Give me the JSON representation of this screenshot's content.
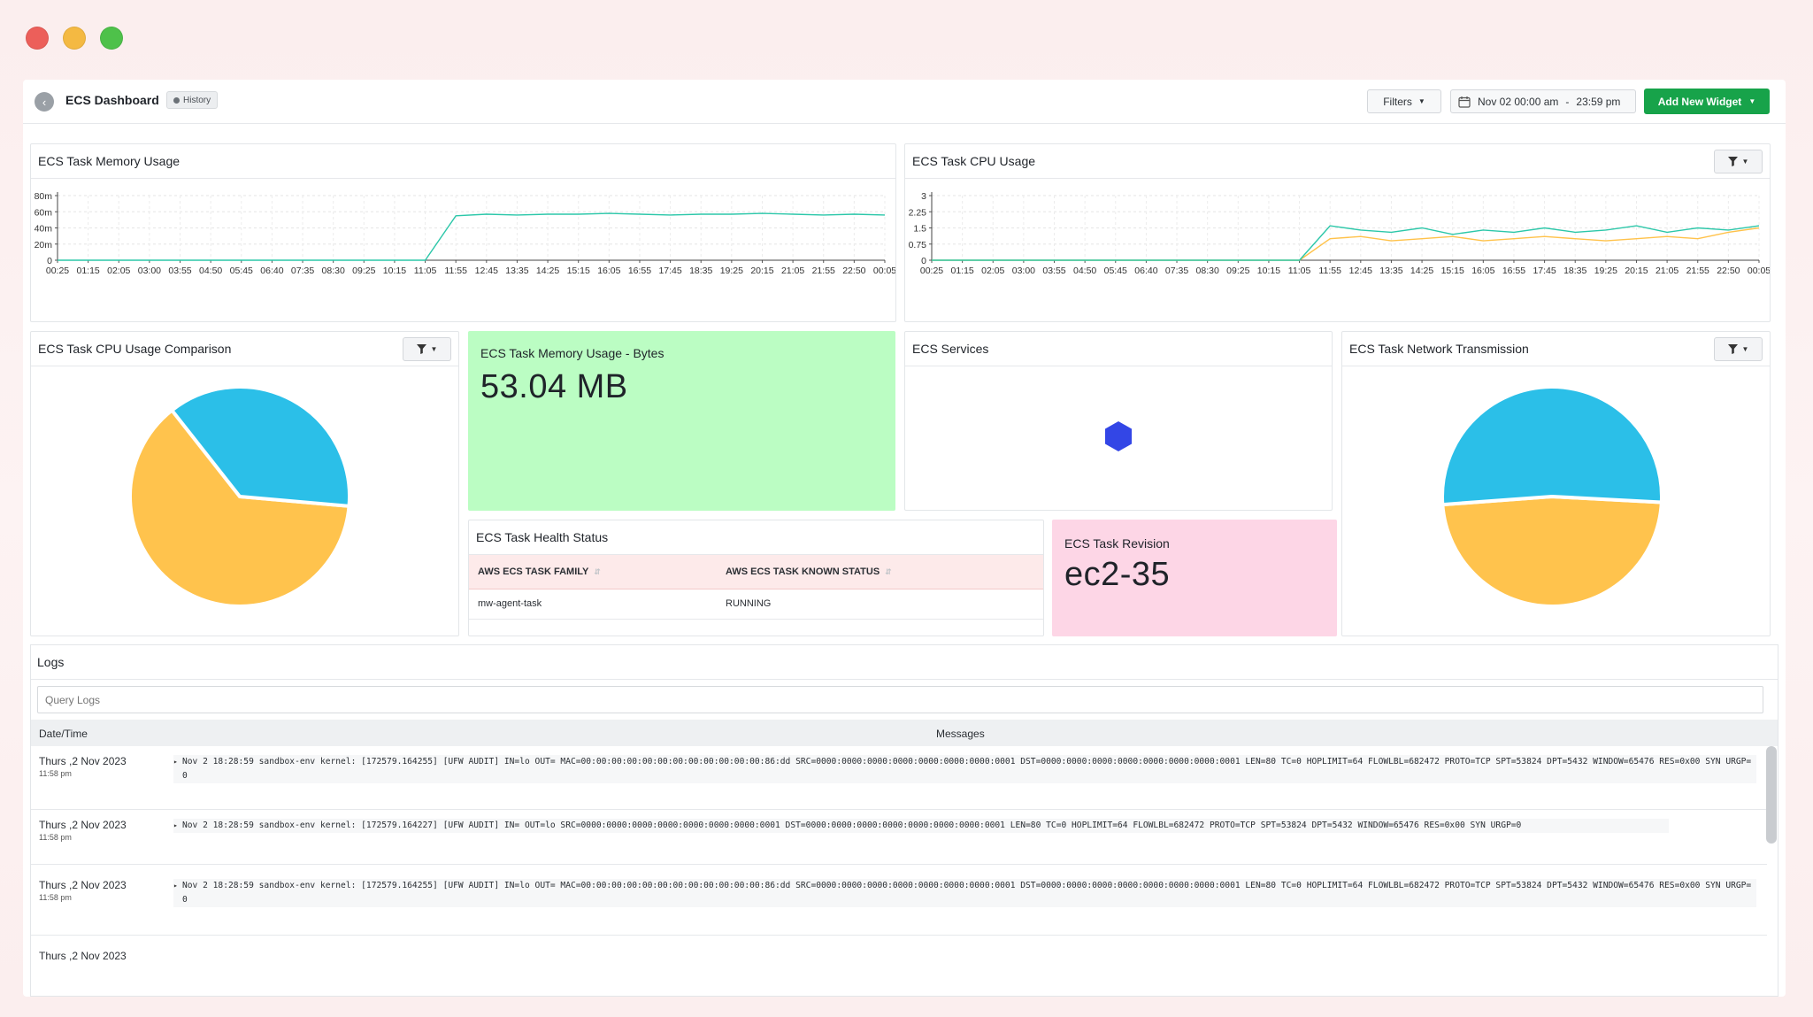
{
  "window_controls": {
    "close_color": "#ec5f5a",
    "minimize_color": "#f4b942",
    "zoom_color": "#4ec14a"
  },
  "header": {
    "back_icon": "chevron-left-icon",
    "title": "ECS Dashboard",
    "history_badge": "History",
    "filters_label": "Filters",
    "date_range": {
      "start": "Nov 02 00:00 am",
      "separator": "-",
      "end": "23:59 pm"
    },
    "add_widget_label": "Add New Widget"
  },
  "colors": {
    "accent_green": "#17a34a",
    "teal_series": "#2cc7a9",
    "yellow_series": "#ffc24a",
    "pie_yellow": "#ffc34d",
    "pie_blue": "#2bbfe8",
    "hexagon": "#3346e6",
    "memory_card_bg": "#bbfdc3",
    "revision_card_bg": "#fdd6e6"
  },
  "widgets": {
    "memory_usage": {
      "title": "ECS Task Memory Usage"
    },
    "cpu_usage": {
      "title": "ECS Task CPU Usage"
    },
    "cpu_comparison": {
      "title": "ECS Task CPU Usage Comparison"
    },
    "memory_bytes": {
      "title": "ECS Task Memory Usage - Bytes",
      "value": "53.04 MB"
    },
    "services": {
      "title": "ECS Services",
      "icon": "hexagon-icon"
    },
    "network": {
      "title": "ECS Task Network Transmission"
    },
    "health": {
      "title": "ECS Task Health Status",
      "columns": [
        "AWS ECS TASK FAMILY",
        "AWS ECS TASK KNOWN STATUS"
      ],
      "rows": [
        [
          "mw-agent-task",
          "RUNNING"
        ]
      ]
    },
    "revision": {
      "title": "ECS Task Revision",
      "value": "ec2-35"
    }
  },
  "chart_data": [
    {
      "type": "line",
      "title": "ECS Task Memory Usage",
      "x": [
        "00:25",
        "01:15",
        "02:05",
        "03:00",
        "03:55",
        "04:50",
        "05:45",
        "06:40",
        "07:35",
        "08:30",
        "09:25",
        "10:15",
        "11:05",
        "11:55",
        "12:45",
        "13:35",
        "14:25",
        "15:15",
        "16:05",
        "16:55",
        "17:45",
        "18:35",
        "19:25",
        "20:15",
        "21:05",
        "21:55",
        "22:50",
        "00:05"
      ],
      "yticks": [
        "0",
        "20m",
        "40m",
        "60m",
        "80m"
      ],
      "ylim": [
        0,
        80
      ],
      "series": [
        {
          "values": [
            0,
            0,
            0,
            0,
            0,
            0,
            0,
            0,
            0,
            0,
            0,
            0,
            0,
            55,
            57,
            56,
            57,
            57,
            58,
            57,
            56,
            57,
            57,
            58,
            57,
            56,
            57,
            56
          ]
        }
      ],
      "grid": true
    },
    {
      "type": "line",
      "title": "ECS Task CPU Usage",
      "x": [
        "00:25",
        "01:15",
        "02:05",
        "03:00",
        "03:55",
        "04:50",
        "05:45",
        "06:40",
        "07:35",
        "08:30",
        "09:25",
        "10:15",
        "11:05",
        "11:55",
        "12:45",
        "13:35",
        "14:25",
        "15:15",
        "16:05",
        "16:55",
        "17:45",
        "18:35",
        "19:25",
        "20:15",
        "21:05",
        "21:55",
        "22:50",
        "00:05"
      ],
      "yticks": [
        "0",
        "0.75",
        "1.5",
        "2.25",
        "3"
      ],
      "ylim": [
        0,
        3
      ],
      "series": [
        {
          "values": [
            0,
            0,
            0,
            0,
            0,
            0,
            0,
            0,
            0,
            0,
            0,
            0,
            0,
            1.6,
            1.4,
            1.3,
            1.5,
            1.2,
            1.4,
            1.3,
            1.5,
            1.3,
            1.4,
            1.6,
            1.3,
            1.5,
            1.4,
            1.6
          ]
        },
        {
          "values": [
            0,
            0,
            0,
            0,
            0,
            0,
            0,
            0,
            0,
            0,
            0,
            0,
            0,
            1.0,
            1.1,
            0.9,
            1.0,
            1.1,
            0.9,
            1.0,
            1.1,
            1.0,
            0.9,
            1.0,
            1.1,
            1.0,
            1.3,
            1.5
          ]
        }
      ],
      "grid": true
    },
    {
      "type": "pie",
      "title": "ECS Task CPU Usage Comparison",
      "values": [
        63,
        37
      ],
      "legend": "none"
    },
    {
      "type": "pie",
      "title": "ECS Task Network Transmission",
      "values": [
        48,
        52
      ],
      "legend": "none"
    }
  ],
  "logs": {
    "title": "Logs",
    "search_placeholder": "Query Logs",
    "col_datetime": "Date/Time",
    "col_messages": "Messages",
    "rows": [
      {
        "date": "Thurs ,2 Nov 2023",
        "time": "11:58 pm",
        "message": "Nov 2 18:28:59 sandbox-env kernel: [172579.164255] [UFW AUDIT] IN=lo OUT= MAC=00:00:00:00:00:00:00:00:00:00:00:00:86:dd SRC=0000:0000:0000:0000:0000:0000:0000:0001 DST=0000:0000:0000:0000:0000:0000:0000:0001 LEN=80 TC=0 HOPLIMIT=64 FLOWLBL=682472 PROTO=TCP SPT=53824 DPT=5432 WINDOW=65476 RES=0x00 SYN URGP=0"
      },
      {
        "date": "Thurs ,2 Nov 2023",
        "time": "11:58 pm",
        "message": "Nov 2 18:28:59 sandbox-env kernel: [172579.164227] [UFW AUDIT] IN= OUT=lo SRC=0000:0000:0000:0000:0000:0000:0000:0001 DST=0000:0000:0000:0000:0000:0000:0000:0001 LEN=80 TC=0 HOPLIMIT=64 FLOWLBL=682472 PROTO=TCP SPT=53824 DPT=5432 WINDOW=65476 RES=0x00 SYN URGP=0"
      },
      {
        "date": "Thurs ,2 Nov 2023",
        "time": "11:58 pm",
        "message": "Nov 2 18:28:59 sandbox-env kernel: [172579.164255] [UFW AUDIT] IN=lo OUT= MAC=00:00:00:00:00:00:00:00:00:00:00:00:86:dd SRC=0000:0000:0000:0000:0000:0000:0000:0001 DST=0000:0000:0000:0000:0000:0000:0000:0001 LEN=80 TC=0 HOPLIMIT=64 FLOWLBL=682472 PROTO=TCP SPT=53824 DPT=5432 WINDOW=65476 RES=0x00 SYN URGP=0"
      },
      {
        "date": "Thurs ,2 Nov 2023",
        "time": "",
        "message": ""
      }
    ]
  }
}
